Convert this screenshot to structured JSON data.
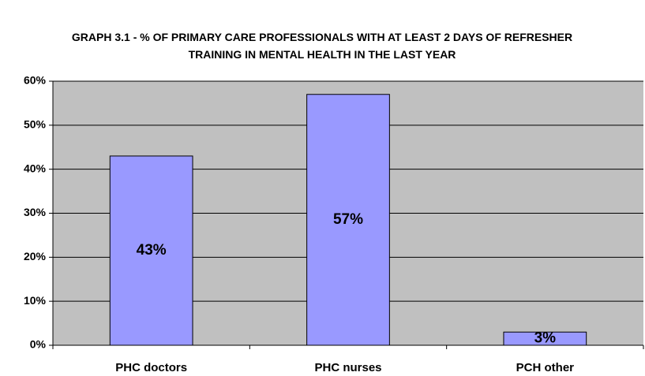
{
  "chart_data": {
    "type": "bar",
    "title": "GRAPH 3.1 - % OF PRIMARY CARE PROFESSIONALS WITH AT LEAST 2 DAYS OF REFRESHER TRAINING IN MENTAL HEALTH IN THE LAST YEAR",
    "categories": [
      "PHC doctors",
      "PHC nurses",
      "PCH other"
    ],
    "values": [
      43,
      57,
      3
    ],
    "value_labels": [
      "43%",
      "57%",
      "3%"
    ],
    "color": "#9999ff",
    "ylim": [
      0,
      60
    ],
    "yticks": [
      {
        "value": 0,
        "label": "0%"
      },
      {
        "value": 10,
        "label": "10%"
      },
      {
        "value": 20,
        "label": "20%"
      },
      {
        "value": 30,
        "label": "30%"
      },
      {
        "value": 40,
        "label": "40%"
      },
      {
        "value": 50,
        "label": "50%"
      },
      {
        "value": 60,
        "label": "60%"
      }
    ],
    "grid": true
  }
}
